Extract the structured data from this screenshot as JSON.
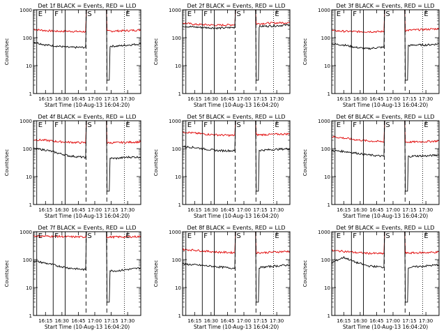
{
  "chart_data": {
    "type": "line",
    "layout": "3x3 grid",
    "ylabel": "Counts/sec",
    "yscale": "log",
    "ylim": [
      1,
      1000
    ],
    "yticks": [
      "1",
      "10",
      "100",
      "1000"
    ],
    "xticks": [
      "16:15",
      "16:30",
      "16:45",
      "17:00",
      "17:15",
      "17:30"
    ],
    "xlabel": "Start Time (10-Aug-13 16:04:20)",
    "markers": [
      {
        "label": "E",
        "style": "solid",
        "time": "16:07"
      },
      {
        "label": "F",
        "style": "solid",
        "time": "16:22"
      },
      {
        "label": "",
        "style": "solid",
        "time": "16:33"
      },
      {
        "label": "S",
        "style": "dashed",
        "time": "16:52"
      },
      {
        "label": "",
        "style": "dashed",
        "time": "17:11"
      },
      {
        "label": "E",
        "style": "dotted",
        "time": "17:27"
      }
    ],
    "series_colors": {
      "events": "#000000",
      "lld": "#e00000"
    },
    "panels": [
      {
        "title": "Det  1f  BLACK = Events, RED = LLD",
        "lld": [
          200,
          180,
          170,
          170,
          165,
          165,
          170,
          175,
          180,
          190
        ],
        "events": [
          70,
          55,
          50,
          45,
          45,
          45,
          50,
          50,
          55,
          60
        ],
        "gap": [
          800,
          800
        ]
      },
      {
        "title": "Det  2f  BLACK = Events, RED = LLD",
        "lld": [
          340,
          300,
          290,
          280,
          290,
          300,
          310,
          330,
          340,
          350
        ],
        "events": [
          260,
          240,
          230,
          220,
          230,
          240,
          250,
          260,
          270,
          290
        ],
        "gap": [
          800,
          800
        ]
      },
      {
        "title": "Det  3f  BLACK = Events, RED = LLD",
        "lld": [
          180,
          170,
          165,
          165,
          165,
          170,
          180,
          190,
          200,
          210
        ],
        "events": [
          60,
          55,
          45,
          40,
          45,
          45,
          50,
          55,
          55,
          60
        ],
        "gap": [
          800,
          800
        ]
      },
      {
        "title": "Det  4f  BLACK = Events, RED = LLD",
        "lld": [
          210,
          200,
          180,
          170,
          165,
          160,
          160,
          165,
          170,
          175
        ],
        "events": [
          100,
          90,
          70,
          55,
          50,
          45,
          45,
          45,
          50,
          50
        ],
        "gap": [
          800,
          800
        ]
      },
      {
        "title": "Det  5f  BLACK = Events, RED = LLD",
        "lld": [
          400,
          360,
          330,
          310,
          300,
          300,
          310,
          320,
          330,
          340
        ],
        "events": [
          120,
          110,
          95,
          85,
          85,
          80,
          85,
          90,
          95,
          100
        ],
        "gap": [
          800,
          800
        ]
      },
      {
        "title": "Det  6f  BLACK = Events, RED = LLD",
        "lld": [
          270,
          240,
          210,
          190,
          180,
          175,
          170,
          175,
          180,
          190
        ],
        "events": [
          85,
          80,
          70,
          60,
          55,
          50,
          50,
          55,
          55,
          60
        ],
        "gap": [
          800,
          800
        ]
      },
      {
        "title": "Det  7f  BLACK = Events, RED = LLD",
        "lld": [
          700,
          690,
          680,
          660,
          650,
          650,
          640,
          650,
          660,
          670
        ],
        "events": [
          90,
          75,
          60,
          50,
          45,
          40,
          40,
          40,
          45,
          50
        ],
        "gap": [
          800,
          800
        ]
      },
      {
        "title": "Det  8f  BLACK = Events, RED = LLD",
        "lld": [
          230,
          220,
          200,
          185,
          180,
          175,
          175,
          180,
          190,
          200
        ],
        "events": [
          70,
          65,
          60,
          55,
          50,
          50,
          50,
          55,
          60,
          65
        ],
        "gap": [
          800,
          800
        ]
      },
      {
        "title": "Det  9f  BLACK = Events, RED = LLD",
        "lld": [
          210,
          200,
          180,
          170,
          165,
          165,
          170,
          175,
          180,
          185
        ],
        "events": [
          75,
          120,
          80,
          60,
          55,
          50,
          50,
          55,
          60,
          65
        ],
        "gap": [
          800,
          800
        ]
      }
    ]
  }
}
